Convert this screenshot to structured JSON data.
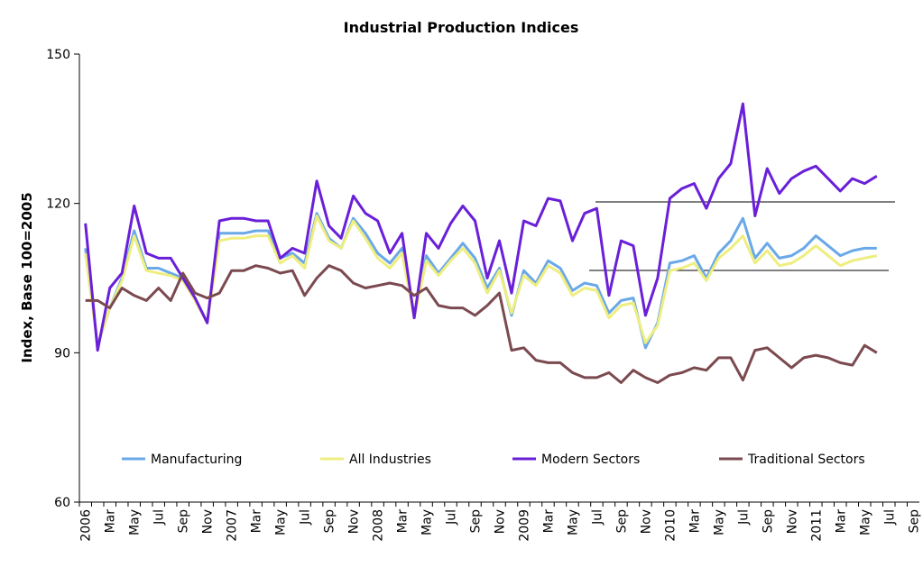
{
  "chart_data": {
    "type": "line",
    "title": "Industrial Production Indices",
    "y_label": "Index, Base 100=2005",
    "categories": [
      "2006",
      null,
      "Mar",
      null,
      "May",
      null,
      "Jul",
      null,
      "Sep",
      null,
      "Nov",
      null,
      "2007",
      null,
      "Mar",
      null,
      "May",
      null,
      "Jul",
      null,
      "Sep",
      null,
      "Nov",
      null,
      "2008",
      null,
      "Mar",
      null,
      "May",
      null,
      "Jul",
      null,
      "Sep",
      null,
      "Nov",
      null,
      "2009",
      null,
      "Mar",
      null,
      "May",
      null,
      "Jul",
      null,
      "Sep",
      null,
      "Nov",
      null,
      "2010",
      null,
      "Mar",
      null,
      "May",
      null,
      "Jul",
      null,
      "Sep",
      null,
      "Nov",
      null,
      "2011",
      null,
      "Mar",
      null,
      "May",
      null,
      "Jul",
      null,
      "Sep"
    ],
    "series": [
      {
        "name": "Manufacturing",
        "color": "#6aa8e8",
        "values": [
          111,
          91.5,
          99,
          105,
          114.5,
          107,
          107,
          106,
          105,
          101,
          96,
          114,
          114,
          114,
          114.5,
          114.5,
          109,
          110,
          108,
          118,
          113,
          111,
          117,
          114,
          110,
          108,
          111,
          97.5,
          109.5,
          106,
          109,
          112,
          109,
          103,
          107,
          97.5,
          106.5,
          104,
          108.5,
          107,
          102.5,
          104,
          103.5,
          98,
          100.5,
          101,
          91,
          96,
          108,
          108.5,
          109.5,
          105,
          110,
          112.5,
          117,
          109,
          112,
          109,
          109.5,
          111,
          113.5,
          111.5,
          109.5,
          110.5,
          111,
          111,
          null,
          null,
          null
        ]
      },
      {
        "name": "All Industries",
        "color": "#eeee80",
        "values": [
          110,
          91.5,
          99,
          104.5,
          113.5,
          106.5,
          106,
          105.5,
          104.5,
          100.5,
          96,
          112.5,
          113,
          113,
          113.5,
          113.5,
          108,
          109.5,
          107,
          117.5,
          112.5,
          111,
          116.5,
          113,
          109,
          107,
          110,
          97,
          108.5,
          105.5,
          108.5,
          111,
          108,
          102,
          106.5,
          98,
          105.5,
          103.5,
          107.5,
          106,
          101.5,
          103,
          102.5,
          97,
          99.5,
          100,
          92,
          95.5,
          106.5,
          107,
          108,
          104.5,
          109,
          111,
          113.5,
          108,
          110.5,
          107.5,
          108,
          109.5,
          111.5,
          109.5,
          107.5,
          108.5,
          109,
          109.5,
          null,
          null,
          null
        ]
      },
      {
        "name": "Modern Sectors",
        "color": "#6a1fd8",
        "values": [
          116,
          90.5,
          103,
          106,
          119.5,
          110,
          109,
          109,
          105,
          101,
          96,
          116.5,
          117,
          117,
          116.5,
          116.5,
          109,
          111,
          110,
          124.5,
          115.5,
          113,
          121.5,
          118,
          116.5,
          110,
          114,
          97,
          114,
          111,
          116,
          119.5,
          116.5,
          105,
          112.5,
          102,
          116.5,
          115.5,
          121,
          120.5,
          112.5,
          118,
          119,
          101.5,
          112.5,
          111.5,
          97.5,
          105,
          121,
          123,
          124,
          119,
          125,
          128,
          140,
          117.5,
          127,
          122,
          125,
          126.5,
          127.5,
          125,
          122.5,
          125,
          124,
          125.5,
          null,
          null,
          null
        ]
      },
      {
        "name": "Traditional Sectors",
        "color": "#7b4a50",
        "values": [
          100.5,
          100.5,
          99,
          103,
          101.5,
          100.5,
          103,
          100.5,
          106,
          102,
          101,
          102,
          106.5,
          106.5,
          107.5,
          107,
          106,
          106.5,
          101.5,
          105,
          107.5,
          106.5,
          104,
          103,
          103.5,
          104,
          103.5,
          101.5,
          103,
          99.5,
          99,
          99,
          97.5,
          99.5,
          102,
          90.5,
          91,
          88.5,
          88,
          88,
          86,
          85,
          85,
          86,
          84,
          86.5,
          85,
          84,
          85.5,
          86,
          87,
          86.5,
          89,
          89,
          84.5,
          90.5,
          91,
          89,
          87,
          89,
          89.5,
          89,
          88,
          87.5,
          91.5,
          90,
          null,
          null,
          null
        ]
      }
    ],
    "ylim": [
      60,
      150
    ],
    "yticks": [
      60,
      90,
      120,
      150
    ],
    "legend": "bottom"
  }
}
